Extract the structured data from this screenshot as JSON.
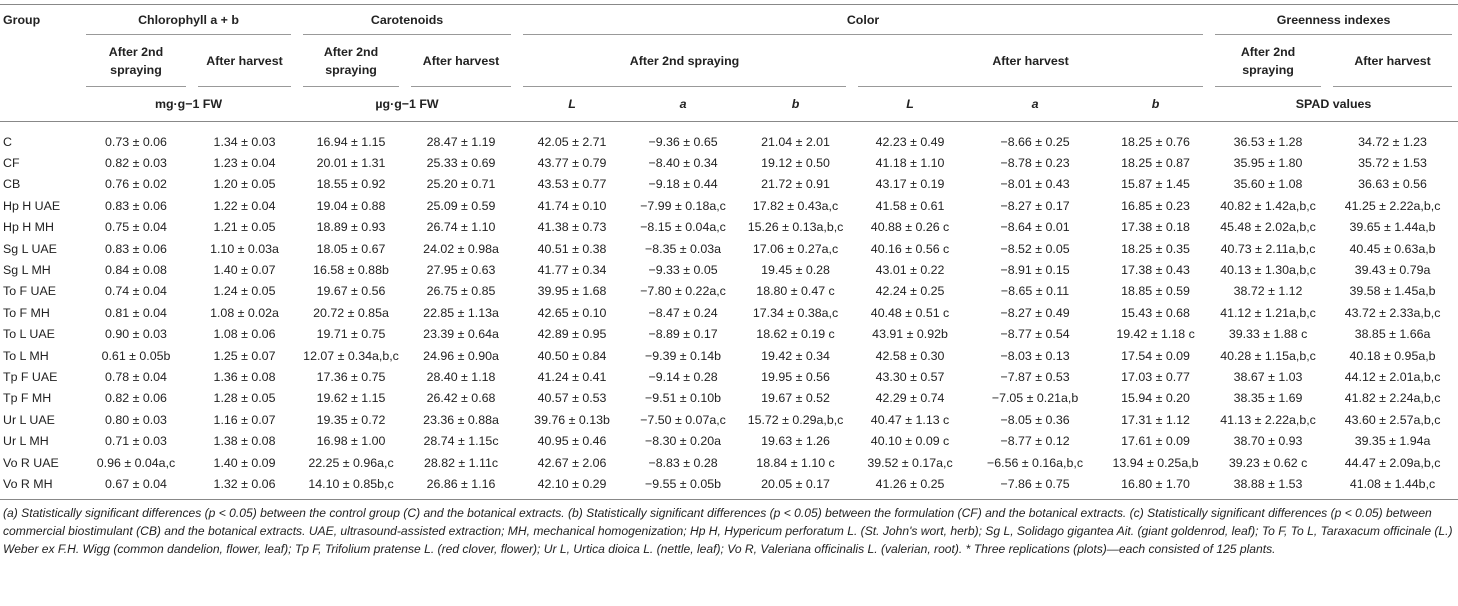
{
  "header": {
    "group": "Group",
    "chlorophyll": "Chlorophyll a + b",
    "carotenoids": "Carotenoids",
    "color": "Color",
    "greenness": "Greenness indexes",
    "after_2nd_spraying": "After 2nd spraying",
    "after_harvest": "After harvest",
    "after_2nd_spraying_wide": "After 2nd spraying",
    "after_harvest_wide": "After harvest",
    "unit_chl": "mg·g−1 FW",
    "unit_car": "µg·g−1 FW",
    "L": "L",
    "a": "a",
    "b": "b",
    "spad": "SPAD values"
  },
  "rows": [
    {
      "group": "C",
      "chl_s": "0.73 ± 0.06",
      "chl_h": "1.34 ± 0.03",
      "car_s": "16.94 ± 1.15",
      "car_h": "28.47 ± 1.19",
      "L_s": "42.05 ± 2.71",
      "a_s": "−9.36 ± 0.65",
      "b_s": "21.04 ± 2.01",
      "L_h": "42.23 ± 0.49",
      "a_h": "−8.66 ± 0.25",
      "b_h": "18.25 ± 0.76",
      "spad_s": "36.53 ± 1.28",
      "spad_h": "34.72 ± 1.23"
    },
    {
      "group": "CF",
      "chl_s": "0.82 ± 0.03",
      "chl_h": "1.23 ± 0.04",
      "car_s": "20.01 ± 1.31",
      "car_h": "25.33 ± 0.69",
      "L_s": "43.77 ± 0.79",
      "a_s": "−8.40 ± 0.34",
      "b_s": "19.12 ± 0.50",
      "L_h": "41.18 ± 1.10",
      "a_h": "−8.78 ± 0.23",
      "b_h": "18.25 ± 0.87",
      "spad_s": "35.95 ± 1.80",
      "spad_h": "35.72 ± 1.53"
    },
    {
      "group": "CB",
      "chl_s": "0.76 ± 0.02",
      "chl_h": "1.20 ± 0.05",
      "car_s": "18.55 ± 0.92",
      "car_h": "25.20 ± 0.71",
      "L_s": "43.53 ± 0.77",
      "a_s": "−9.18 ± 0.44",
      "b_s": "21.72 ± 0.91",
      "L_h": "43.17 ± 0.19",
      "a_h": "−8.01 ± 0.43",
      "b_h": "15.87 ± 1.45",
      "spad_s": "35.60 ± 1.08",
      "spad_h": "36.63 ± 0.56"
    },
    {
      "group": "Hp H UAE",
      "chl_s": "0.83 ± 0.06",
      "chl_h": "1.22 ± 0.04",
      "car_s": "19.04 ± 0.88",
      "car_h": "25.09 ± 0.59",
      "L_s": "41.74 ± 0.10",
      "a_s": "−7.99 ± 0.18a,c",
      "b_s": "17.82 ± 0.43a,c",
      "L_h": "41.58 ± 0.61",
      "a_h": "−8.27 ± 0.17",
      "b_h": "16.85 ± 0.23",
      "spad_s": "40.82 ± 1.42a,b,c",
      "spad_h": "41.25 ± 2.22a,b,c"
    },
    {
      "group": "Hp H MH",
      "chl_s": "0.75 ± 0.04",
      "chl_h": "1.21 ± 0.05",
      "car_s": "18.89 ± 0.93",
      "car_h": "26.74 ± 1.10",
      "L_s": "41.38 ± 0.73",
      "a_s": "−8.15 ± 0.04a,c",
      "b_s": "15.26 ± 0.13a,b,c",
      "L_h": "40.88 ± 0.26 c",
      "a_h": "−8.64 ± 0.01",
      "b_h": "17.38 ± 0.18",
      "spad_s": "45.48 ± 2.02a,b,c",
      "spad_h": "39.65 ± 1.44a,b"
    },
    {
      "group": "Sg L UAE",
      "chl_s": "0.83 ± 0.06",
      "chl_h": "1.10 ± 0.03a",
      "car_s": "18.05 ± 0.67",
      "car_h": "24.02 ± 0.98a",
      "L_s": "40.51 ± 0.38",
      "a_s": "−8.35 ± 0.03a",
      "b_s": "17.06 ± 0.27a,c",
      "L_h": "40.16 ± 0.56 c",
      "a_h": "−8.52 ± 0.05",
      "b_h": "18.25 ± 0.35",
      "spad_s": "40.73 ± 2.11a,b,c",
      "spad_h": "40.45 ± 0.63a,b"
    },
    {
      "group": "Sg L MH",
      "chl_s": "0.84 ± 0.08",
      "chl_h": "1.40 ± 0.07",
      "car_s": "16.58 ± 0.88b",
      "car_h": "27.95 ± 0.63",
      "L_s": "41.77 ± 0.34",
      "a_s": "−9.33 ± 0.05",
      "b_s": "19.45 ± 0.28",
      "L_h": "43.01 ± 0.22",
      "a_h": "−8.91 ± 0.15",
      "b_h": "17.38 ± 0.43",
      "spad_s": "40.13 ± 1.30a,b,c",
      "spad_h": "39.43 ± 0.79a"
    },
    {
      "group": "To F UAE",
      "chl_s": "0.74 ± 0.04",
      "chl_h": "1.24 ± 0.05",
      "car_s": "19.67 ± 0.56",
      "car_h": "26.75 ± 0.85",
      "L_s": "39.95 ± 1.68",
      "a_s": "−7.80 ± 0.22a,c",
      "b_s": "18.80 ± 0.47 c",
      "L_h": "42.24 ± 0.25",
      "a_h": "−8.65 ± 0.11",
      "b_h": "18.85 ± 0.59",
      "spad_s": "38.72 ± 1.12",
      "spad_h": "39.58 ± 1.45a,b"
    },
    {
      "group": "To F MH",
      "chl_s": "0.81 ± 0.04",
      "chl_h": "1.08 ± 0.02a",
      "car_s": "20.72 ± 0.85a",
      "car_h": "22.85 ± 1.13a",
      "L_s": "42.65 ± 0.10",
      "a_s": "−8.47 ± 0.24",
      "b_s": "17.34 ± 0.38a,c",
      "L_h": "40.48 ± 0.51 c",
      "a_h": "−8.27 ± 0.49",
      "b_h": "15.43 ± 0.68",
      "spad_s": "41.12 ± 1.21a,b,c",
      "spad_h": "43.72 ± 2.33a,b,c"
    },
    {
      "group": "To L UAE",
      "chl_s": "0.90 ± 0.03",
      "chl_h": "1.08 ± 0.06",
      "car_s": "19.71 ± 0.75",
      "car_h": "23.39 ± 0.64a",
      "L_s": "42.89 ± 0.95",
      "a_s": "−8.89 ± 0.17",
      "b_s": "18.62 ± 0.19 c",
      "L_h": "43.91 ± 0.92b",
      "a_h": "−8.77 ± 0.54",
      "b_h": "19.42 ± 1.18 c",
      "spad_s": "39.33 ± 1.88 c",
      "spad_h": "38.85 ± 1.66a"
    },
    {
      "group": "To L MH",
      "chl_s": "0.61 ± 0.05b",
      "chl_h": "1.25 ± 0.07",
      "car_s": "12.07 ± 0.34a,b,c",
      "car_h": "24.96 ± 0.90a",
      "L_s": "40.50 ± 0.84",
      "a_s": "−9.39 ± 0.14b",
      "b_s": "19.42 ± 0.34",
      "L_h": "42.58 ± 0.30",
      "a_h": "−8.03 ± 0.13",
      "b_h": "17.54 ± 0.09",
      "spad_s": "40.28 ± 1.15a,b,c",
      "spad_h": "40.18 ± 0.95a,b"
    },
    {
      "group": "Tp F UAE",
      "chl_s": "0.78 ± 0.04",
      "chl_h": "1.36 ± 0.08",
      "car_s": "17.36 ± 0.75",
      "car_h": "28.40 ± 1.18",
      "L_s": "41.24 ± 0.41",
      "a_s": "−9.14 ± 0.28",
      "b_s": "19.95 ± 0.56",
      "L_h": "43.30 ± 0.57",
      "a_h": "−7.87 ± 0.53",
      "b_h": "17.03 ± 0.77",
      "spad_s": "38.67 ± 1.03",
      "spad_h": "44.12 ± 2.01a,b,c"
    },
    {
      "group": "Tp F MH",
      "chl_s": "0.82 ± 0.06",
      "chl_h": "1.28 ± 0.05",
      "car_s": "19.62 ± 1.15",
      "car_h": "26.42 ± 0.68",
      "L_s": "40.57 ± 0.53",
      "a_s": "−9.51 ± 0.10b",
      "b_s": "19.67 ± 0.52",
      "L_h": "42.29 ± 0.74",
      "a_h": "−7.05 ± 0.21a,b",
      "b_h": "15.94 ± 0.20",
      "spad_s": "38.35 ± 1.69",
      "spad_h": "41.82 ± 2.24a,b,c"
    },
    {
      "group": "Ur L UAE",
      "chl_s": "0.80 ± 0.03",
      "chl_h": "1.16 ± 0.07",
      "car_s": "19.35 ± 0.72",
      "car_h": "23.36 ± 0.88a",
      "L_s": "39.76 ± 0.13b",
      "a_s": "−7.50 ± 0.07a,c",
      "b_s": "15.72 ± 0.29a,b,c",
      "L_h": "40.47 ± 1.13 c",
      "a_h": "−8.05 ± 0.36",
      "b_h": "17.31 ± 1.12",
      "spad_s": "41.13 ± 2.22a,b,c",
      "spad_h": "43.60 ± 2.57a,b,c"
    },
    {
      "group": "Ur L MH",
      "chl_s": "0.71 ± 0.03",
      "chl_h": "1.38 ± 0.08",
      "car_s": "16.98 ± 1.00",
      "car_h": "28.74 ± 1.15c",
      "L_s": "40.95 ± 0.46",
      "a_s": "−8.30 ± 0.20a",
      "b_s": "19.63 ± 1.26",
      "L_h": "40.10 ± 0.09 c",
      "a_h": "−8.77 ± 0.12",
      "b_h": "17.61 ± 0.09",
      "spad_s": "38.70 ± 0.93",
      "spad_h": "39.35 ± 1.94a"
    },
    {
      "group": "Vo R UAE",
      "chl_s": "0.96 ± 0.04a,c",
      "chl_h": "1.40 ± 0.09",
      "car_s": "22.25 ± 0.96a,c",
      "car_h": "28.82 ± 1.11c",
      "L_s": "42.67 ± 2.06",
      "a_s": "−8.83 ± 0.28",
      "b_s": "18.84 ± 1.10 c",
      "L_h": "39.52 ± 0.17a,c",
      "a_h": "−6.56 ± 0.16a,b,c",
      "b_h": "13.94 ± 0.25a,b",
      "spad_s": "39.23 ± 0.62 c",
      "spad_h": "44.47 ± 2.09a,b,c"
    },
    {
      "group": "Vo R MH",
      "chl_s": "0.67 ± 0.04",
      "chl_h": "1.32 ± 0.06",
      "car_s": "14.10 ± 0.85b,c",
      "car_h": "26.86 ± 1.16",
      "L_s": "42.10 ± 0.29",
      "a_s": "−9.55 ± 0.05b",
      "b_s": "20.05 ± 0.17",
      "L_h": "41.26 ± 0.25",
      "a_h": "−7.86 ± 0.75",
      "b_h": "16.80 ± 1.70",
      "spad_s": "38.88 ± 1.53",
      "spad_h": "41.08 ± 1.44b,c"
    }
  ],
  "footnote": "(a) Statistically significant differences (p < 0.05) between the control group (C) and the botanical extracts. (b) Statistically significant differences (p < 0.05) between the formulation (CF) and the botanical extracts. (c) Statistically significant differences (p < 0.05) between commercial biostimulant (CB) and the botanical extracts. UAE, ultrasound-assisted extraction; MH, mechanical homogenization; Hp H, Hypericum perforatum L. (St. John's wort, herb); Sg L, Solidago gigantea Ait. (giant goldenrod, leaf); To F, To L, Taraxacum officinale (L.) Weber ex F.H. Wigg (common dandelion, flower, leaf); Tp F, Trifolium pratense L. (red clover, flower); Ur L, Urtica dioica L. (nettle, leaf); Vo R, Valeriana officinalis L. (valerian, root). * Three replications (plots)—each consisted of 125 plants."
}
